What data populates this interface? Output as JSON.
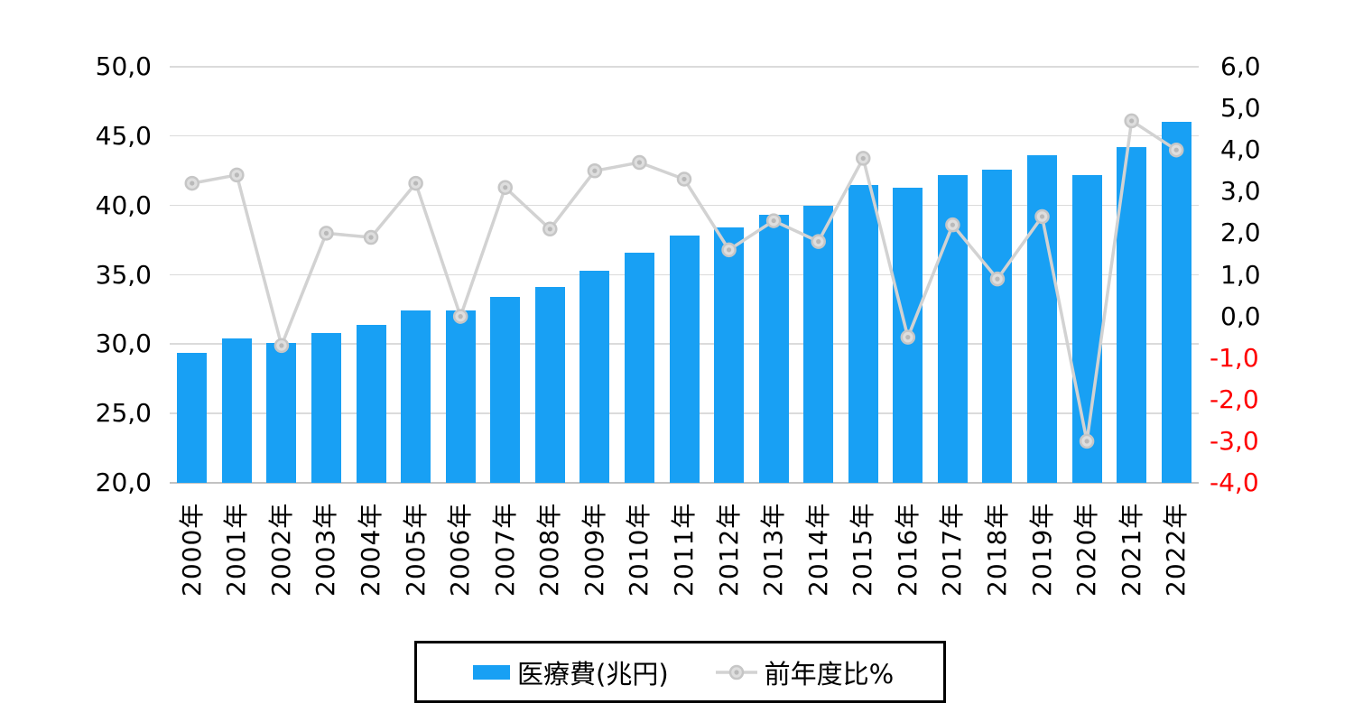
{
  "chart_data": {
    "type": "combo (column + line, dual axis)",
    "categories": [
      "2000年",
      "2001年",
      "2002年",
      "2003年",
      "2004年",
      "2005年",
      "2006年",
      "2007年",
      "2008年",
      "2009年",
      "2010年",
      "2011年",
      "2012年",
      "2013年",
      "2014年",
      "2015年",
      "2016年",
      "2017年",
      "2018年",
      "2019年",
      "2020年",
      "2021年",
      "2022年"
    ],
    "series": [
      {
        "name": "医療費(兆円)",
        "chart_type": "bar",
        "axis": "left",
        "color": "#18A0F4",
        "values": [
          29.4,
          30.4,
          30.1,
          30.8,
          31.4,
          32.4,
          32.4,
          33.4,
          34.1,
          35.3,
          36.6,
          37.8,
          38.4,
          39.3,
          40.0,
          41.5,
          41.3,
          42.2,
          42.6,
          43.6,
          42.2,
          44.2,
          46.0
        ]
      },
      {
        "name": "前年度比%",
        "chart_type": "line",
        "axis": "right",
        "color": "#D2D2D2",
        "marker": "circle",
        "values": [
          3.2,
          3.4,
          -0.7,
          2.0,
          1.9,
          3.2,
          0.0,
          3.1,
          2.1,
          3.5,
          3.7,
          3.3,
          1.6,
          2.3,
          1.8,
          3.8,
          -0.5,
          2.2,
          0.9,
          2.4,
          -3.0,
          4.7,
          4.0
        ]
      }
    ],
    "left_axis": {
      "min": 20,
      "max": 50,
      "step": 5,
      "tick_labels": [
        "50,0",
        "45,0",
        "40,0",
        "35,0",
        "30,0",
        "25,0",
        "20,0"
      ],
      "decimal_separator": ","
    },
    "right_axis": {
      "min": -4,
      "max": 6,
      "step": 1,
      "tick_labels": [
        "6,0",
        "5,0",
        "4,0",
        "3,0",
        "2,0",
        "1,0",
        "0,0",
        "-1,0",
        "-2,0",
        "-3,0",
        "-4,0"
      ],
      "negative_label_color": "#FF0000"
    },
    "grid": "horizontal",
    "legend_position": "bottom-center-boxed"
  },
  "legend": {
    "items": [
      {
        "label": "医療費(兆円)",
        "swatch": "bar-square",
        "color": "#18A0F4"
      },
      {
        "label": "前年度比%",
        "swatch": "line-with-circle-marker",
        "color": "#C8C8C8"
      }
    ]
  },
  "colors": {
    "background": "#FFFFFF",
    "bar_blue": "#18A0F4",
    "line_gray": "#D2D2D2",
    "marker_ring": "#C6C6C6",
    "marker_fill": "#DEDEDE",
    "marker_dot": "#B9B9B9",
    "gridline": "#DBDBDB",
    "axis_line": "#C2C2C2",
    "tick_text": "#000000",
    "negative_tick": "#FF0000",
    "legend_border": "#000000"
  }
}
